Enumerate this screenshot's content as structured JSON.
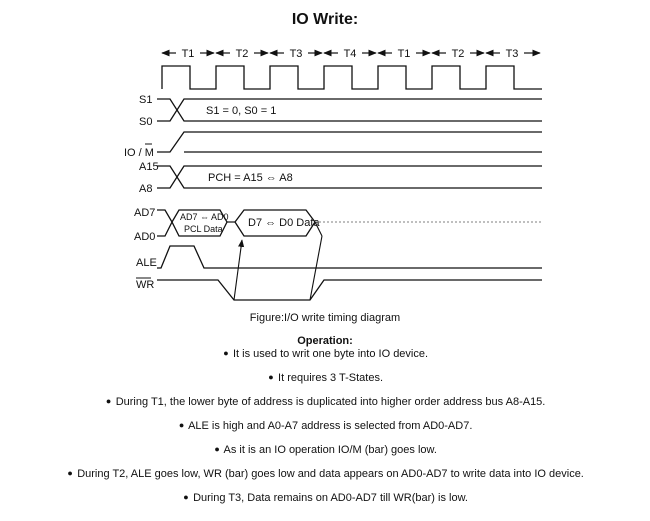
{
  "title": "IO Write:",
  "diagram": {
    "t_states": [
      "T1",
      "T2",
      "T3",
      "T4",
      "T1",
      "T2",
      "T3"
    ],
    "signals": {
      "s1": "S1",
      "s0": "S0",
      "io_m": "IO / M",
      "a15": "A15",
      "a8": "A8",
      "ad7": "AD7",
      "ad0": "AD0",
      "ale": "ALE",
      "wr": "WR"
    },
    "annotations": {
      "status": "S1 = 0, S0 = 1",
      "address_high": "PCH = A15 ⇔ A8",
      "address_low_line1": "AD7 ⇔ AD0",
      "address_low_line2": "PCL Data",
      "data": "D7 ⇔ D0 Data"
    }
  },
  "caption": "Figure:I/O write timing diagram",
  "operation_heading": "Operation:",
  "bullets": [
    "It is used to writ one byte into IO device.",
    "It requires 3 T-States.",
    "During T1, the lower byte of address is duplicated into higher order address bus A8-A15.",
    "ALE is high and A0-A7 address is selected from AD0-AD7.",
    "As it is an IO operation IO/M (bar) goes low.",
    "During T2, ALE goes low, WR (bar) goes low and data appears on AD0-AD7 to write data into IO device.",
    "During T3, Data remains on AD0-AD7 till WR(bar) is low."
  ]
}
